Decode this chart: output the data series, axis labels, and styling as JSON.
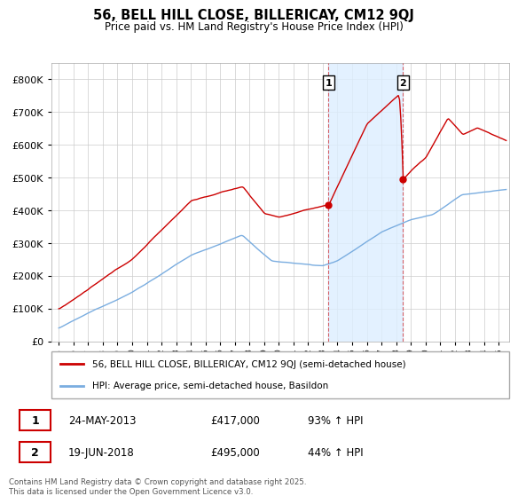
{
  "title": "56, BELL HILL CLOSE, BILLERICAY, CM12 9QJ",
  "subtitle": "Price paid vs. HM Land Registry's House Price Index (HPI)",
  "legend_line1": "56, BELL HILL CLOSE, BILLERICAY, CM12 9QJ (semi-detached house)",
  "legend_line2": "HPI: Average price, semi-detached house, Basildon",
  "ann1_date": "24-MAY-2013",
  "ann1_price": "£417,000",
  "ann1_hpi": "93% ↑ HPI",
  "ann1_x": 2013.38,
  "ann1_y": 417000,
  "ann2_date": "19-JUN-2018",
  "ann2_price": "£495,000",
  "ann2_hpi": "44% ↑ HPI",
  "ann2_x": 2018.46,
  "ann2_y": 495000,
  "footer": "Contains HM Land Registry data © Crown copyright and database right 2025.\nThis data is licensed under the Open Government Licence v3.0.",
  "red_color": "#cc0000",
  "blue_color": "#7aade0",
  "shade_color": "#ddeeff",
  "background_color": "#ffffff",
  "grid_color": "#cccccc",
  "ylim": [
    0,
    850000
  ],
  "xlim_start": 1994.5,
  "xlim_end": 2025.7,
  "yticks": [
    0,
    100000,
    200000,
    300000,
    400000,
    500000,
    600000,
    700000,
    800000
  ]
}
